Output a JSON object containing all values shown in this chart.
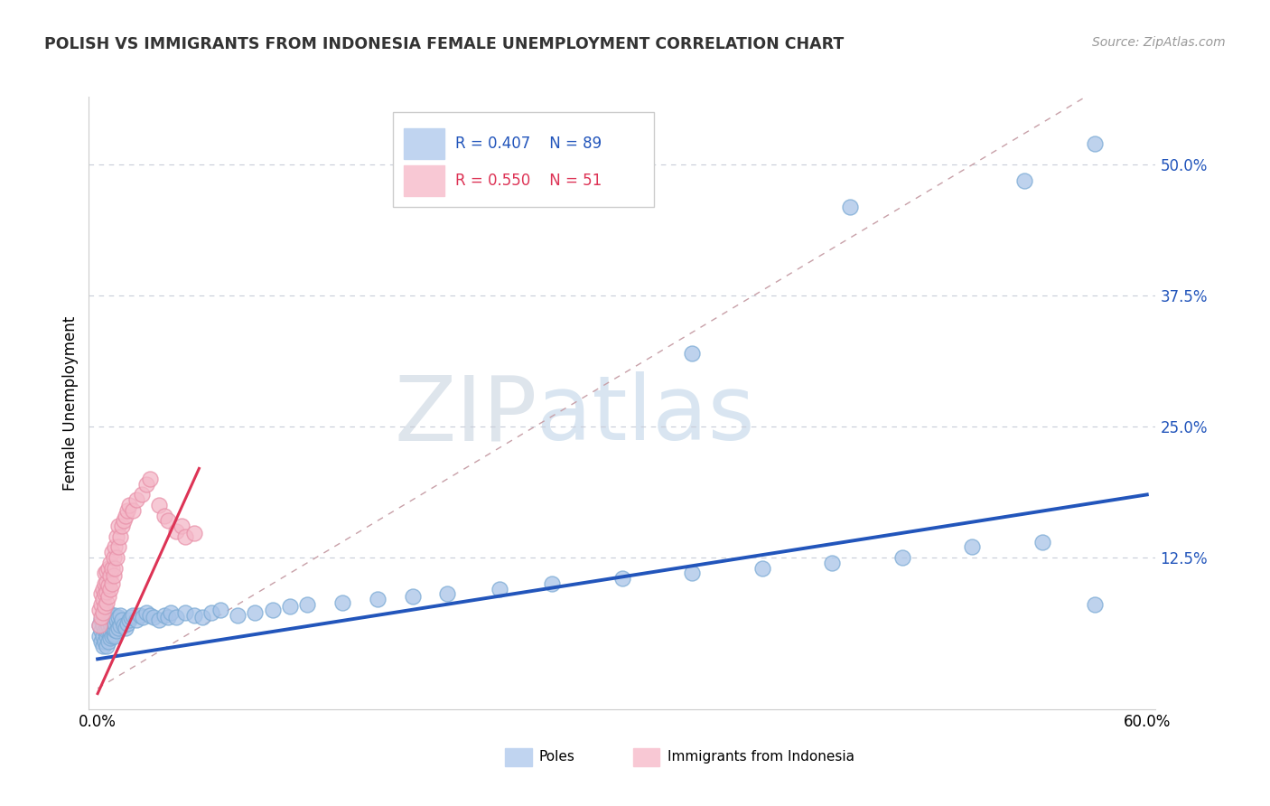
{
  "title": "POLISH VS IMMIGRANTS FROM INDONESIA FEMALE UNEMPLOYMENT CORRELATION CHART",
  "source_text": "Source: ZipAtlas.com",
  "ylabel": "Female Unemployment",
  "watermark_zip": "ZIP",
  "watermark_atlas": "atlas",
  "xlim": [
    -0.005,
    0.605
  ],
  "ylim": [
    -0.02,
    0.565
  ],
  "ytick_positions": [
    0.125,
    0.25,
    0.375,
    0.5
  ],
  "ytick_labels": [
    "12.5%",
    "25.0%",
    "37.5%",
    "50.0%"
  ],
  "poles_R": "0.407",
  "poles_N": "89",
  "indonesia_R": "0.550",
  "indonesia_N": "51",
  "poles_color": "#a8c4e8",
  "poles_edge_color": "#7aaad4",
  "indonesia_color": "#f4b8c8",
  "indonesia_edge_color": "#e890a8",
  "poles_line_color": "#2255bb",
  "indonesia_line_color": "#dd3355",
  "diagonal_color": "#c8a0a8",
  "grid_color": "#c8ccd8",
  "legend_box_poles": "#c0d4f0",
  "legend_box_indonesia": "#f8c8d4",
  "poles_x": [
    0.001,
    0.001,
    0.002,
    0.002,
    0.002,
    0.003,
    0.003,
    0.003,
    0.003,
    0.004,
    0.004,
    0.004,
    0.004,
    0.005,
    0.005,
    0.005,
    0.005,
    0.005,
    0.006,
    0.006,
    0.006,
    0.006,
    0.006,
    0.007,
    0.007,
    0.007,
    0.007,
    0.008,
    0.008,
    0.008,
    0.009,
    0.009,
    0.009,
    0.01,
    0.01,
    0.01,
    0.01,
    0.011,
    0.011,
    0.012,
    0.012,
    0.013,
    0.013,
    0.014,
    0.015,
    0.016,
    0.017,
    0.018,
    0.019,
    0.02,
    0.022,
    0.024,
    0.026,
    0.028,
    0.03,
    0.032,
    0.035,
    0.038,
    0.04,
    0.042,
    0.045,
    0.05,
    0.055,
    0.06,
    0.065,
    0.07,
    0.08,
    0.09,
    0.1,
    0.11,
    0.12,
    0.14,
    0.16,
    0.18,
    0.2,
    0.23,
    0.26,
    0.3,
    0.34,
    0.38,
    0.42,
    0.46,
    0.5,
    0.54,
    0.57,
    0.34,
    0.43,
    0.53,
    0.57
  ],
  "poles_y": [
    0.05,
    0.06,
    0.045,
    0.055,
    0.065,
    0.04,
    0.05,
    0.06,
    0.07,
    0.045,
    0.055,
    0.065,
    0.075,
    0.04,
    0.05,
    0.055,
    0.065,
    0.07,
    0.045,
    0.055,
    0.06,
    0.068,
    0.072,
    0.048,
    0.055,
    0.062,
    0.07,
    0.05,
    0.058,
    0.066,
    0.052,
    0.06,
    0.068,
    0.05,
    0.056,
    0.062,
    0.07,
    0.055,
    0.065,
    0.058,
    0.068,
    0.06,
    0.07,
    0.065,
    0.06,
    0.058,
    0.062,
    0.065,
    0.068,
    0.07,
    0.065,
    0.07,
    0.068,
    0.072,
    0.07,
    0.068,
    0.065,
    0.07,
    0.068,
    0.072,
    0.068,
    0.072,
    0.07,
    0.068,
    0.072,
    0.075,
    0.07,
    0.072,
    0.075,
    0.078,
    0.08,
    0.082,
    0.085,
    0.088,
    0.09,
    0.095,
    0.1,
    0.105,
    0.11,
    0.115,
    0.12,
    0.125,
    0.135,
    0.14,
    0.08,
    0.32,
    0.46,
    0.485,
    0.52
  ],
  "indonesia_x": [
    0.001,
    0.001,
    0.002,
    0.002,
    0.002,
    0.003,
    0.003,
    0.003,
    0.004,
    0.004,
    0.004,
    0.004,
    0.005,
    0.005,
    0.005,
    0.005,
    0.006,
    0.006,
    0.006,
    0.007,
    0.007,
    0.007,
    0.008,
    0.008,
    0.008,
    0.009,
    0.009,
    0.01,
    0.01,
    0.011,
    0.011,
    0.012,
    0.012,
    0.013,
    0.014,
    0.015,
    0.016,
    0.017,
    0.018,
    0.02,
    0.022,
    0.025,
    0.028,
    0.03,
    0.035,
    0.038,
    0.04,
    0.045,
    0.048,
    0.05,
    0.055
  ],
  "indonesia_y": [
    0.06,
    0.075,
    0.068,
    0.08,
    0.09,
    0.072,
    0.085,
    0.095,
    0.078,
    0.09,
    0.1,
    0.11,
    0.082,
    0.092,
    0.102,
    0.112,
    0.088,
    0.098,
    0.115,
    0.095,
    0.108,
    0.12,
    0.1,
    0.115,
    0.13,
    0.108,
    0.125,
    0.115,
    0.135,
    0.125,
    0.145,
    0.135,
    0.155,
    0.145,
    0.155,
    0.16,
    0.165,
    0.17,
    0.175,
    0.17,
    0.18,
    0.185,
    0.195,
    0.2,
    0.175,
    0.165,
    0.16,
    0.15,
    0.155,
    0.145,
    0.148
  ],
  "poles_trend_x": [
    0.0,
    0.6
  ],
  "poles_trend_y": [
    0.028,
    0.185
  ],
  "indonesia_trend_x": [
    0.0,
    0.058
  ],
  "indonesia_trend_y": [
    -0.005,
    0.21
  ]
}
